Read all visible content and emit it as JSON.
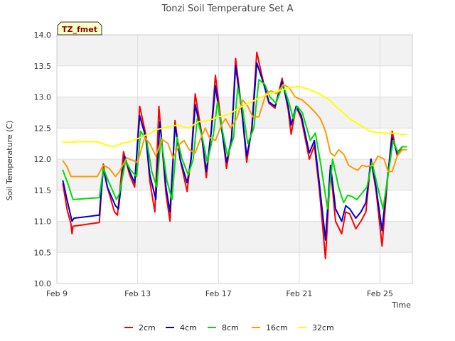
{
  "chart_data": {
    "type": "line",
    "title": "Tonzi Soil Temperature Set A",
    "xlabel": "Time",
    "ylabel": "Soil Temperature (C)",
    "badge": "TZ_fmet",
    "xlim": [
      9,
      26.6
    ],
    "ylim": [
      10.0,
      14.0
    ],
    "yticks": [
      10.0,
      10.5,
      11.0,
      11.5,
      12.0,
      12.5,
      13.0,
      13.5,
      14.0
    ],
    "yticklabels": [
      "10.0",
      "10.5",
      "11.0",
      "11.5",
      "12.0",
      "12.5",
      "13.0",
      "13.5",
      "14.0"
    ],
    "xticks": [
      9,
      13,
      17,
      21,
      25
    ],
    "xticklabels": [
      "Feb 9",
      "Feb 13",
      "Feb 17",
      "Feb 21",
      "Feb 25"
    ],
    "legend_position": "bottom",
    "series": [
      {
        "name": "2cm",
        "color": "#ff0000",
        "x": [
          9.3,
          9.5,
          9.7,
          9.75,
          9.8,
          11.1,
          11.3,
          11.5,
          11.85,
          12.0,
          12.3,
          12.6,
          12.85,
          13.1,
          13.4,
          13.6,
          13.85,
          14.05,
          14.4,
          14.6,
          14.85,
          15.1,
          15.45,
          15.65,
          15.85,
          16.15,
          16.4,
          16.65,
          16.85,
          17.15,
          17.4,
          17.65,
          17.85,
          18.15,
          18.4,
          18.65,
          18.9,
          19.25,
          19.5,
          19.8,
          20.15,
          20.45,
          20.6,
          20.85,
          21.1,
          21.5,
          21.75,
          22.0,
          22.3,
          22.55,
          22.8,
          23.1,
          23.3,
          23.5,
          23.8,
          24.05,
          24.3,
          24.55,
          24.8,
          25.1,
          25.35,
          25.6,
          25.85,
          26.1,
          26.3
        ],
        "values": [
          11.6,
          11.2,
          10.95,
          10.8,
          10.92,
          10.98,
          11.92,
          11.55,
          11.15,
          11.1,
          12.12,
          11.75,
          11.55,
          12.85,
          12.4,
          11.65,
          11.15,
          12.85,
          11.45,
          11.0,
          12.62,
          12.0,
          11.48,
          12.05,
          13.05,
          12.45,
          11.7,
          12.5,
          13.35,
          12.55,
          11.85,
          12.35,
          13.62,
          12.8,
          11.95,
          12.5,
          13.72,
          13.2,
          12.9,
          12.82,
          13.3,
          12.8,
          12.4,
          12.85,
          12.65,
          12.0,
          12.22,
          11.5,
          10.4,
          11.85,
          11.0,
          10.8,
          11.15,
          11.12,
          10.88,
          11.0,
          11.15,
          12.0,
          11.5,
          10.6,
          11.6,
          12.45,
          12.05,
          12.2,
          12.2
        ]
      },
      {
        "name": "4cm",
        "color": "#0000cc",
        "x": [
          9.3,
          9.5,
          9.75,
          9.85,
          11.1,
          11.3,
          11.5,
          11.9,
          12.05,
          12.35,
          12.6,
          12.85,
          13.1,
          13.4,
          13.6,
          13.9,
          14.1,
          14.4,
          14.6,
          14.85,
          15.1,
          15.45,
          15.65,
          15.85,
          16.15,
          16.4,
          16.65,
          16.85,
          17.15,
          17.4,
          17.65,
          17.85,
          18.15,
          18.4,
          18.65,
          18.9,
          19.25,
          19.5,
          19.8,
          20.15,
          20.45,
          20.6,
          20.85,
          21.1,
          21.5,
          21.75,
          22.0,
          22.3,
          22.55,
          22.8,
          23.1,
          23.3,
          23.5,
          23.8,
          24.05,
          24.3,
          24.55,
          24.8,
          25.1,
          25.35,
          25.6,
          25.85,
          26.1,
          26.3
        ],
        "values": [
          11.65,
          11.35,
          11.0,
          11.05,
          11.1,
          11.85,
          11.55,
          11.25,
          11.2,
          12.05,
          11.8,
          11.62,
          12.7,
          12.35,
          11.75,
          11.35,
          12.6,
          11.55,
          11.15,
          12.55,
          12.0,
          11.62,
          12.0,
          12.88,
          12.42,
          11.8,
          12.45,
          13.18,
          12.5,
          11.95,
          12.32,
          13.5,
          12.8,
          12.05,
          12.45,
          13.55,
          13.2,
          12.92,
          12.85,
          13.25,
          12.85,
          12.55,
          12.85,
          12.7,
          12.1,
          12.3,
          11.6,
          10.7,
          11.9,
          11.2,
          11.0,
          11.25,
          11.2,
          11.05,
          11.15,
          11.3,
          12.0,
          11.55,
          10.85,
          11.65,
          12.35,
          12.1,
          12.2,
          12.2
        ]
      },
      {
        "name": "8cm",
        "color": "#00dd00",
        "x": [
          9.3,
          9.55,
          9.8,
          11.1,
          11.3,
          11.55,
          11.95,
          12.1,
          12.4,
          12.65,
          12.95,
          13.15,
          13.45,
          13.7,
          13.95,
          14.15,
          14.45,
          14.7,
          14.95,
          15.2,
          15.5,
          15.75,
          15.95,
          16.2,
          16.45,
          16.75,
          16.95,
          17.2,
          17.45,
          17.75,
          17.95,
          18.2,
          18.45,
          18.75,
          19.0,
          19.3,
          19.55,
          19.85,
          20.2,
          20.5,
          20.7,
          20.9,
          21.15,
          21.55,
          21.8,
          22.05,
          22.4,
          22.65,
          22.95,
          23.2,
          23.4,
          23.6,
          23.85,
          24.1,
          24.35,
          24.6,
          24.85,
          25.15,
          25.4,
          25.65,
          25.9,
          26.1,
          26.3
        ],
        "values": [
          11.82,
          11.6,
          11.35,
          11.38,
          11.85,
          11.65,
          11.35,
          11.45,
          11.98,
          11.82,
          11.72,
          12.45,
          12.3,
          11.8,
          11.55,
          12.35,
          11.65,
          11.35,
          12.35,
          12.0,
          11.75,
          12.0,
          12.65,
          12.35,
          11.95,
          12.4,
          12.92,
          12.45,
          12.05,
          12.35,
          13.15,
          12.8,
          12.25,
          12.5,
          13.28,
          13.2,
          13.0,
          12.9,
          13.2,
          12.9,
          12.65,
          12.85,
          12.75,
          12.3,
          12.42,
          11.95,
          11.2,
          12.0,
          11.55,
          11.3,
          11.42,
          11.4,
          11.35,
          11.45,
          11.55,
          11.95,
          11.6,
          11.2,
          11.75,
          12.3,
          12.1,
          12.2,
          12.2
        ]
      },
      {
        "name": "16cm",
        "color": "#ff9900",
        "x": [
          9.3,
          9.5,
          9.7,
          11.0,
          11.3,
          11.6,
          11.9,
          12.1,
          12.45,
          12.75,
          13.0,
          13.35,
          13.6,
          13.9,
          14.2,
          14.5,
          14.75,
          15.1,
          15.3,
          15.55,
          15.85,
          16.1,
          16.35,
          16.55,
          16.85,
          17.15,
          17.35,
          17.6,
          17.9,
          18.2,
          18.45,
          18.7,
          19.0,
          19.35,
          19.6,
          19.9,
          20.2,
          20.5,
          20.8,
          21.15,
          21.5,
          21.8,
          22.05,
          22.3,
          22.55,
          22.75,
          22.95,
          23.2,
          23.45,
          23.7,
          23.9,
          24.1,
          24.35,
          24.65,
          24.9,
          25.2,
          25.4,
          25.6,
          25.85,
          26.1,
          26.3
        ],
        "values": [
          11.97,
          11.88,
          11.72,
          11.72,
          11.9,
          11.85,
          11.72,
          11.8,
          12.02,
          11.98,
          11.95,
          12.35,
          12.25,
          12.05,
          12.32,
          12.25,
          12.02,
          12.25,
          12.3,
          12.15,
          12.1,
          12.32,
          12.5,
          12.35,
          12.3,
          12.55,
          12.65,
          12.5,
          12.65,
          12.95,
          12.85,
          12.68,
          12.68,
          13.05,
          13.1,
          13.05,
          13.2,
          13.15,
          13.0,
          12.95,
          12.85,
          12.75,
          12.65,
          12.45,
          12.1,
          12.05,
          12.15,
          12.08,
          11.9,
          11.85,
          11.82,
          11.9,
          11.88,
          11.9,
          12.05,
          12.0,
          11.8,
          11.8,
          12.05,
          12.15,
          12.15
        ]
      },
      {
        "name": "32cm",
        "color": "#ffff00",
        "x": [
          9.3,
          9.6,
          10.0,
          11.0,
          11.5,
          11.8,
          12.2,
          12.6,
          13.0,
          13.5,
          14.0,
          14.5,
          15.0,
          15.5,
          16.0,
          16.5,
          17.0,
          17.5,
          18.0,
          18.5,
          19.0,
          19.5,
          20.0,
          20.5,
          21.0,
          21.5,
          22.0,
          22.5,
          22.8,
          23.0,
          23.5,
          24.0,
          24.5,
          25.0,
          25.5,
          26.0,
          26.3
        ],
        "values": [
          12.28,
          12.27,
          12.28,
          12.28,
          12.22,
          12.2,
          12.25,
          12.28,
          12.33,
          12.4,
          12.48,
          12.52,
          12.55,
          12.5,
          12.6,
          12.62,
          12.68,
          12.72,
          12.82,
          12.9,
          12.98,
          13.05,
          13.1,
          13.15,
          13.17,
          13.12,
          13.05,
          12.95,
          12.85,
          12.8,
          12.65,
          12.55,
          12.45,
          12.42,
          12.42,
          12.4,
          12.4
        ]
      }
    ]
  }
}
